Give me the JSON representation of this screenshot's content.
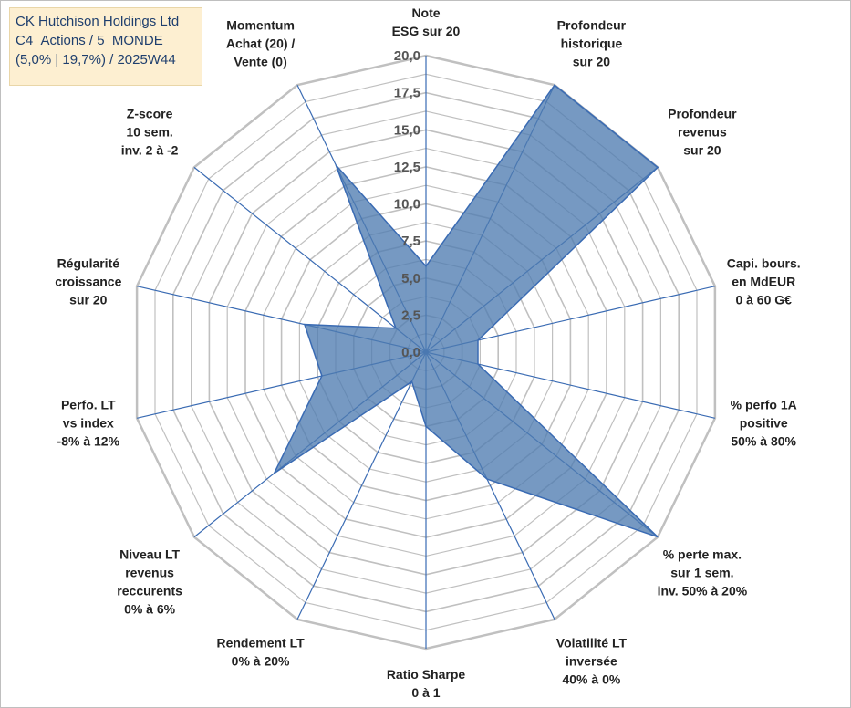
{
  "header": {
    "line1": "CK Hutchison Holdings Ltd",
    "line2": "C4_Actions / 5_MONDE",
    "line3": "(5,0% | 19,7%) / 2025W44"
  },
  "chart_data": {
    "type": "radar",
    "rmin": 0,
    "rmax": 20,
    "ticks": [
      "0,0",
      "2,5",
      "5,0",
      "7,5",
      "10,0",
      "12,5",
      "15,0",
      "17,5",
      "20,0"
    ],
    "tick_values": [
      0,
      2.5,
      5,
      7.5,
      10,
      12.5,
      15,
      17.5,
      20
    ],
    "axes": [
      {
        "lines": [
          "Note",
          "ESG sur 20"
        ],
        "value": 5.8
      },
      {
        "lines": [
          "Profondeur",
          "historique",
          "sur 20"
        ],
        "value": 20
      },
      {
        "lines": [
          "Profondeur",
          "revenus",
          "sur 20"
        ],
        "value": 20
      },
      {
        "lines": [
          "Capi. bours.",
          "en MdEUR",
          "0 à 60 G€"
        ],
        "value": 3.6
      },
      {
        "lines": [
          "% perfo 1A",
          "positive",
          "50% à 80%"
        ],
        "value": 3.6
      },
      {
        "lines": [
          "% perte max.",
          "sur 1 sem.",
          "inv. 50% à 20%"
        ],
        "value": 20
      },
      {
        "lines": [
          "Volatilité LT",
          "inversée",
          "40% à 0%"
        ],
        "value": 9.5
      },
      {
        "lines": [
          "Ratio Sharpe",
          "0 à 1"
        ],
        "value": 5.0
      },
      {
        "lines": [
          "Rendement LT",
          "0% à 20%"
        ],
        "value": 2.2
      },
      {
        "lines": [
          "Niveau LT",
          "revenus",
          "reccurents",
          "0% à 6%"
        ],
        "value": 13.1
      },
      {
        "lines": [
          "Perfo. LT",
          "vs index",
          "-8% à 12%"
        ],
        "value": 7.2
      },
      {
        "lines": [
          "Régularité",
          "croissance",
          "sur 20"
        ],
        "value": 8.4
      },
      {
        "lines": [
          "Z-score",
          "10 sem.",
          "inv. 2 à -2"
        ],
        "value": 2.6
      },
      {
        "lines": [
          "Momentum",
          "Achat (20) /",
          "Vente (0)"
        ],
        "value": 14.0
      }
    ],
    "colors": {
      "fill": "#4f7cb1",
      "stroke": "#3a6bb3",
      "grid": "#c0c0c0",
      "spoke": "#3a6bb3"
    },
    "grid": true
  }
}
